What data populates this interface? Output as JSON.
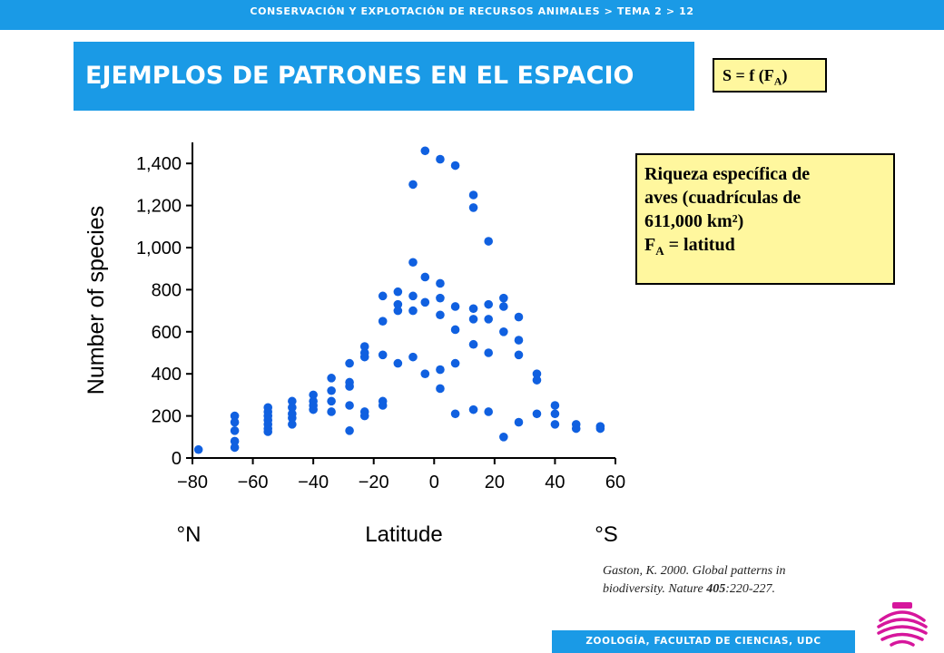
{
  "header": {
    "breadcrumb": "CONSERVACIÓN Y EXPLOTACIÓN DE RECURSOS ANIMALES > TEMA 2 > 12"
  },
  "title": "EJEMPLOS DE PATRONES EN EL ESPACIO",
  "formula": {
    "prefix": "S = f (F",
    "sub": "A",
    "suffix": ")"
  },
  "info": {
    "line1": "Riqueza específica de",
    "line2": "aves (cuadrículas de",
    "line3": "611,000 km²)",
    "line4_prefix": "F",
    "line4_sub": "A",
    "line4_suffix": " = latitud"
  },
  "citation": {
    "prefix": "Gaston, K. 2000. Global patterns in biodiversity. Nature ",
    "volume": "405",
    "suffix": ":220-227."
  },
  "footer": {
    "label": "ZOOLOGÍA, FACULTAD DE CIENCIAS, UDC"
  },
  "logo": {
    "icon": "university-seal-icon",
    "color": "#d6169c"
  },
  "colors": {
    "accent": "#1a9ae6",
    "highlight": "#fff79e",
    "points": "#1060e0"
  },
  "chart_data": {
    "type": "scatter",
    "xlabel": "Latitude",
    "ylabel": "Number of species",
    "x_left_note": "°N",
    "x_right_note": "°S",
    "xlim": [
      -80,
      60
    ],
    "ylim": [
      0,
      1500
    ],
    "xticks": [
      -80,
      -60,
      -40,
      -20,
      0,
      20,
      40,
      60
    ],
    "yticks": [
      0,
      200,
      400,
      600,
      800,
      1000,
      1200,
      1400
    ],
    "ytick_labels": [
      "0",
      "200",
      "400",
      "600",
      "800",
      "1,000",
      "1,200",
      "1,400"
    ],
    "grid": false,
    "series": [
      {
        "points": [
          [
            -78,
            40
          ],
          [
            -66,
            200
          ],
          [
            -66,
            170
          ],
          [
            -66,
            130
          ],
          [
            -66,
            80
          ],
          [
            -66,
            50
          ],
          [
            -55,
            240
          ],
          [
            -55,
            220
          ],
          [
            -55,
            200
          ],
          [
            -55,
            180
          ],
          [
            -55,
            160
          ],
          [
            -55,
            140
          ],
          [
            -55,
            125
          ],
          [
            -47,
            270
          ],
          [
            -47,
            240
          ],
          [
            -47,
            210
          ],
          [
            -47,
            190
          ],
          [
            -47,
            160
          ],
          [
            -40,
            300
          ],
          [
            -40,
            270
          ],
          [
            -40,
            250
          ],
          [
            -40,
            230
          ],
          [
            -34,
            380
          ],
          [
            -34,
            320
          ],
          [
            -34,
            270
          ],
          [
            -34,
            220
          ],
          [
            -28,
            450
          ],
          [
            -28,
            360
          ],
          [
            -28,
            340
          ],
          [
            -28,
            250
          ],
          [
            -28,
            130
          ],
          [
            -23,
            530
          ],
          [
            -23,
            500
          ],
          [
            -23,
            480
          ],
          [
            -23,
            220
          ],
          [
            -23,
            200
          ],
          [
            -17,
            770
          ],
          [
            -17,
            650
          ],
          [
            -17,
            490
          ],
          [
            -17,
            270
          ],
          [
            -17,
            250
          ],
          [
            -12,
            790
          ],
          [
            -12,
            730
          ],
          [
            -12,
            700
          ],
          [
            -12,
            450
          ],
          [
            -7,
            1300
          ],
          [
            -7,
            930
          ],
          [
            -7,
            770
          ],
          [
            -7,
            700
          ],
          [
            -7,
            480
          ],
          [
            -3,
            1460
          ],
          [
            -3,
            860
          ],
          [
            -3,
            740
          ],
          [
            -3,
            400
          ],
          [
            2,
            1420
          ],
          [
            2,
            830
          ],
          [
            2,
            760
          ],
          [
            2,
            680
          ],
          [
            2,
            420
          ],
          [
            2,
            330
          ],
          [
            7,
            1390
          ],
          [
            7,
            720
          ],
          [
            7,
            610
          ],
          [
            7,
            450
          ],
          [
            7,
            210
          ],
          [
            13,
            1250
          ],
          [
            13,
            1190
          ],
          [
            13,
            710
          ],
          [
            13,
            660
          ],
          [
            13,
            540
          ],
          [
            13,
            230
          ],
          [
            18,
            1030
          ],
          [
            18,
            730
          ],
          [
            18,
            660
          ],
          [
            18,
            500
          ],
          [
            18,
            220
          ],
          [
            23,
            760
          ],
          [
            23,
            720
          ],
          [
            23,
            600
          ],
          [
            23,
            100
          ],
          [
            28,
            670
          ],
          [
            28,
            560
          ],
          [
            28,
            490
          ],
          [
            28,
            170
          ],
          [
            34,
            400
          ],
          [
            34,
            370
          ],
          [
            34,
            210
          ],
          [
            40,
            250
          ],
          [
            40,
            210
          ],
          [
            40,
            160
          ],
          [
            47,
            160
          ],
          [
            47,
            140
          ],
          [
            55,
            150
          ],
          [
            55,
            140
          ]
        ]
      }
    ]
  }
}
